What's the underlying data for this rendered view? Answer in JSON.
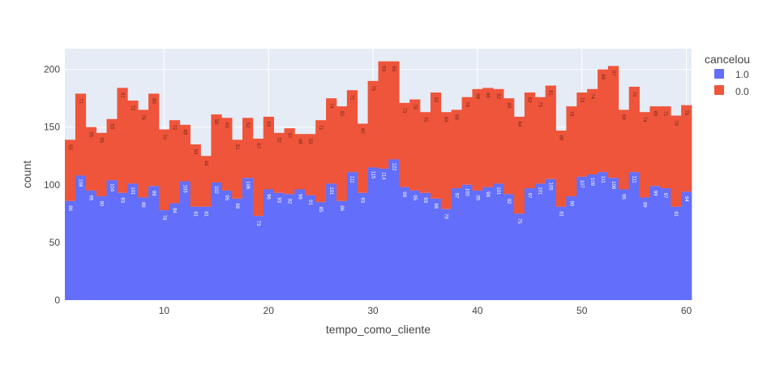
{
  "chart_data": {
    "type": "bar",
    "barmode": "stack",
    "xlabel": "tempo_como_cliente",
    "ylabel": "count",
    "xlim": [
      0.5,
      60.5
    ],
    "ylim": [
      0,
      218
    ],
    "x_ticks": [
      10,
      20,
      30,
      40,
      50,
      60
    ],
    "y_ticks": [
      0,
      50,
      100,
      150,
      200
    ],
    "grid": true,
    "legend_title": "cancelou",
    "legend_position": "top-right",
    "x": [
      1,
      2,
      3,
      4,
      5,
      6,
      7,
      8,
      9,
      10,
      11,
      12,
      13,
      14,
      15,
      16,
      17,
      18,
      19,
      20,
      21,
      22,
      23,
      24,
      25,
      26,
      27,
      28,
      29,
      30,
      31,
      32,
      33,
      34,
      35,
      36,
      37,
      38,
      39,
      40,
      41,
      42,
      43,
      44,
      45,
      46,
      47,
      48,
      49,
      50,
      51,
      52,
      53,
      54,
      55,
      56,
      57,
      58,
      59,
      60
    ],
    "series": [
      {
        "name": "1.0",
        "color": "#636efa",
        "values": [
          86,
          108,
          95,
          90,
          104,
          93,
          101,
          89,
          99,
          78,
          84,
          103,
          81,
          81,
          102,
          95,
          88,
          106,
          73,
          96,
          93,
          92,
          96,
          91,
          85,
          101,
          86,
          111,
          93,
          115,
          114,
          122,
          98,
          95,
          93,
          88,
          79,
          97,
          100,
          95,
          98,
          101,
          92,
          75,
          97,
          101,
          105,
          81,
          90,
          107,
          109,
          111,
          106,
          96,
          111,
          89,
          99,
          97,
          81,
          94
        ]
      },
      {
        "name": "0.0",
        "color": "#ef553b",
        "values": [
          53,
          71,
          55,
          55,
          53,
          91,
          72,
          76,
          80,
          70,
          72,
          49,
          54,
          44,
          59,
          63,
          51,
          52,
          67,
          63,
          52,
          57,
          48,
          53,
          71,
          74,
          82,
          71,
          60,
          75,
          93,
          85,
          73,
          79,
          70,
          92,
          84,
          68,
          76,
          88,
          86,
          82,
          83,
          84,
          83,
          75,
          81,
          66,
          78,
          73,
          74,
          89,
          97,
          69,
          74,
          74,
          69,
          71,
          79,
          75
        ]
      }
    ]
  }
}
